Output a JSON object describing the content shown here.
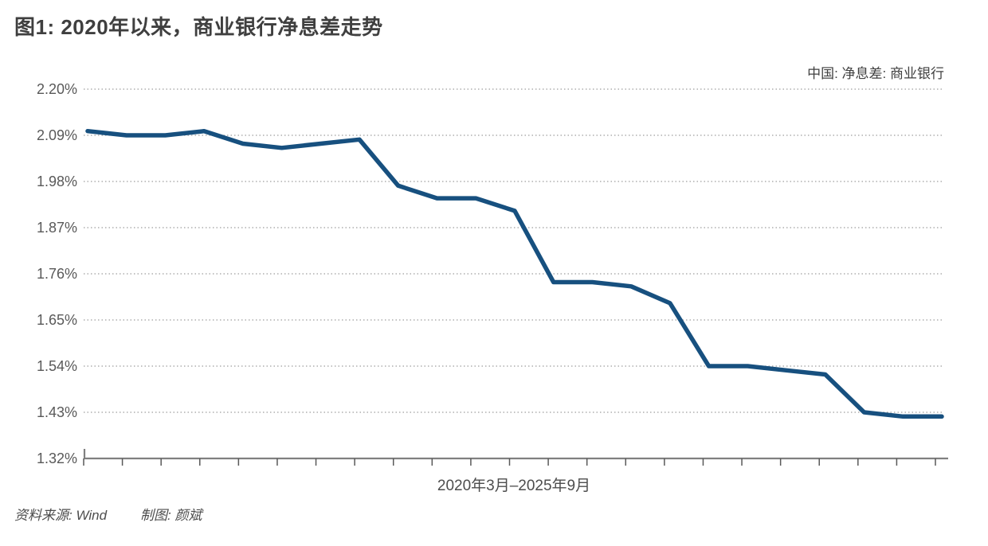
{
  "title": "图1: 2020年以来，商业银行净息差走势",
  "legend": "中国: 净息差: 商业银行",
  "footer": {
    "source": "资料来源: Wind",
    "credit": "制图: 颜斌"
  },
  "colors": {
    "line": "#17507F",
    "title_text": "#3F3F3F",
    "legend_text": "#404040",
    "axis_text": "#595959",
    "gridline": "#9E9E9E",
    "axis_line": "#808080",
    "tick_mark": "#595959"
  },
  "chart_data": {
    "type": "line",
    "title": "图1: 2020年以来，商业银行净息差走势",
    "x_axis_label": "2020年3月–2025年9月",
    "unit": "%",
    "x": [
      "2020-03",
      "2020-06",
      "2020-09",
      "2020-12",
      "2021-03",
      "2021-06",
      "2021-09",
      "2021-12",
      "2022-03",
      "2022-06",
      "2022-09",
      "2022-12",
      "2023-03",
      "2023-06",
      "2023-09",
      "2023-12",
      "2024-03",
      "2024-06",
      "2024-09",
      "2024-12",
      "2025-03",
      "2025-06",
      "2025-09"
    ],
    "series": [
      {
        "name": "中国: 净息差: 商业银行",
        "values": [
          2.1,
          2.09,
          2.09,
          2.1,
          2.07,
          2.06,
          2.07,
          2.08,
          1.97,
          1.94,
          1.94,
          1.91,
          1.74,
          1.74,
          1.73,
          1.69,
          1.54,
          1.54,
          1.53,
          1.52,
          1.43,
          1.42,
          1.42
        ]
      }
    ],
    "y_tick_labels": [
      "2.20%",
      "2.09%",
      "1.98%",
      "1.87%",
      "1.76%",
      "1.65%",
      "1.54%",
      "1.43%",
      "1.32%"
    ],
    "ylim": [
      1.32,
      2.2
    ],
    "grid": "horizontal-dotted",
    "legend_position": "top-right",
    "line_color": "#17507F"
  }
}
